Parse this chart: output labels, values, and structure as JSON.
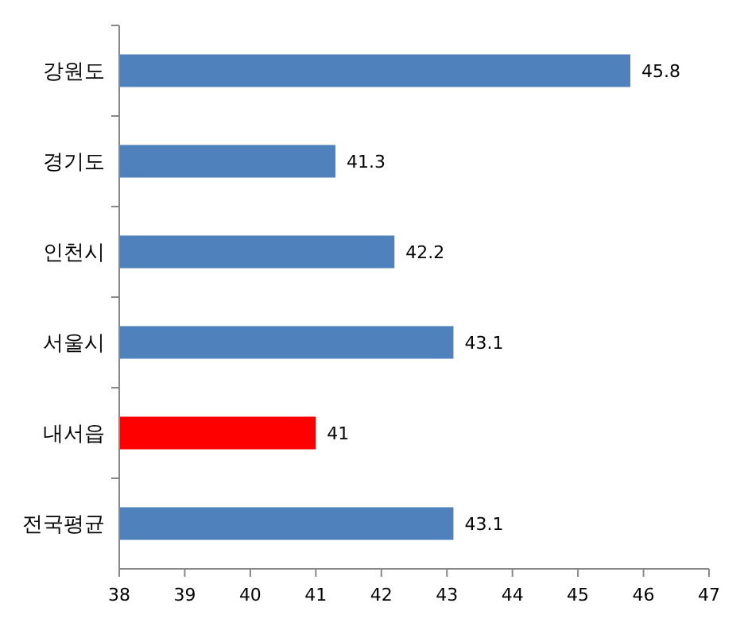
{
  "chart_data": {
    "type": "bar",
    "orientation": "horizontal",
    "categories": [
      "강원도",
      "경기도",
      "인천시",
      "서울시",
      "내서읍",
      "전국평균"
    ],
    "values": [
      45.8,
      41.3,
      42.2,
      43.1,
      41,
      43.1
    ],
    "colors": [
      "#4f81bd",
      "#4f81bd",
      "#4f81bd",
      "#4f81bd",
      "#ff0000",
      "#4f81bd"
    ],
    "xlim": [
      38,
      47
    ],
    "xticks": [
      38,
      39,
      40,
      41,
      42,
      43,
      44,
      45,
      46,
      47
    ],
    "data_labels": true
  }
}
